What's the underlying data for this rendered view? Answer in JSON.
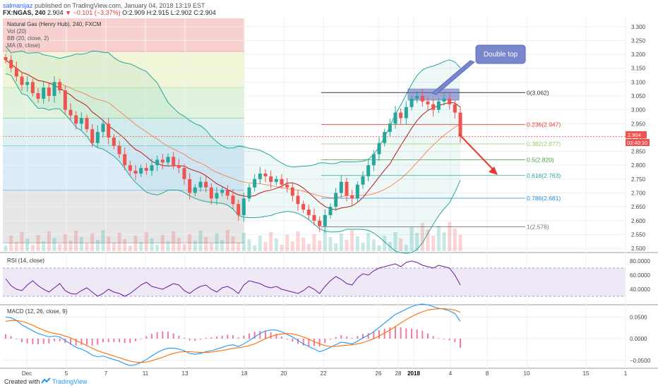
{
  "header": {
    "user": "salmanijaz",
    "published": "published on TradingView.com, January 04, 2018 13:19 EST",
    "symbol": "FX:NGAS, 240",
    "last": "2.904",
    "change": "−0.101 (−3.37%)",
    "o_label": "O:",
    "o": "2.909",
    "h_label": "H:",
    "h": "2.915",
    "l_label": "L:",
    "l": "2.902",
    "c_label": "C:",
    "c": "2.904"
  },
  "legend": {
    "title": "Natural Gas (Henry Hub), 240, FXCM",
    "vol": "Vol (20)",
    "bb": "BB (20, close, 2)",
    "ma": "MA (9, close)",
    "rsi": "RSI (14, close)",
    "macd": "MACD (12, 26, close, 9)"
  },
  "annotation": {
    "text": "Double top"
  },
  "price_tag": {
    "price": "2.904",
    "countdown": "03:40:10"
  },
  "footer": {
    "created": "Created with",
    "brand": "TradingView"
  },
  "colors": {
    "up": "#26a69a",
    "down": "#ef5350",
    "arrow": "#e53935",
    "bb": "#26a69a",
    "ma": "#b71c1c",
    "rsi": "#6a1b9a",
    "macd": "#2196f3",
    "signal": "#ff6d00",
    "annotation": "#7986cb"
  },
  "chart_data": [
    {
      "type": "candlestick",
      "title": "Natural Gas (Henry Hub), 240, FXCM",
      "ylim": [
        2.49,
        3.33
      ],
      "y_ticks": [
        "3.300",
        "3.250",
        "3.200",
        "3.150",
        "3.100",
        "3.050",
        "3.000",
        "2.950",
        "2.900",
        "2.850",
        "2.800",
        "2.750",
        "2.700",
        "2.650",
        "2.600",
        "2.550",
        "2.500"
      ],
      "x_ticks": [
        "Dec",
        "5",
        "7",
        "11",
        "13",
        "18",
        "20",
        "22",
        "26",
        "28",
        "2018",
        "4",
        "8",
        "10",
        "15",
        "1"
      ],
      "series_close": [
        3.18,
        3.15,
        3.12,
        3.09,
        3.1,
        3.06,
        3.04,
        3.08,
        3.05,
        3.1,
        3.07,
        3.0,
        2.98,
        2.95,
        2.97,
        2.93,
        2.88,
        2.92,
        2.95,
        2.9,
        2.87,
        2.84,
        2.8,
        2.78,
        2.77,
        2.79,
        2.78,
        2.8,
        2.82,
        2.81,
        2.83,
        2.8,
        2.79,
        2.75,
        2.7,
        2.72,
        2.74,
        2.72,
        2.68,
        2.7,
        2.71,
        2.69,
        2.66,
        2.62,
        2.68,
        2.72,
        2.75,
        2.77,
        2.76,
        2.74,
        2.75,
        2.73,
        2.72,
        2.69,
        2.66,
        2.64,
        2.62,
        2.6,
        2.58,
        2.62,
        2.65,
        2.7,
        2.74,
        2.69,
        2.68,
        2.73,
        2.76,
        2.8,
        2.84,
        2.88,
        2.92,
        2.95,
        2.99,
        2.97,
        3.01,
        3.04,
        3.05,
        3.03,
        3.02,
        3.0,
        3.03,
        3.04,
        3.02,
        2.99,
        2.904
      ],
      "fibonacci": [
        {
          "level": "0",
          "value": 3.062,
          "label": "0(3.062)"
        },
        {
          "level": "0.236",
          "value": 2.947,
          "label": "0.236(2.947)"
        },
        {
          "level": "0.382",
          "value": 2.877,
          "label": "0.382(2.877)"
        },
        {
          "level": "0.5",
          "value": 2.82,
          "label": "0.5(2.820)"
        },
        {
          "level": "0.618",
          "value": 2.763,
          "label": "0.618(2.763)"
        },
        {
          "level": "0.786",
          "value": 2.681,
          "label": "0.786(2.681)"
        },
        {
          "level": "1",
          "value": 2.578,
          "label": "1(2.578)"
        }
      ],
      "left_fib_zones": [
        3.33,
        3.21,
        3.08,
        2.97,
        2.87,
        2.71,
        2.52
      ]
    },
    {
      "type": "line",
      "title": "RSI (14, close)",
      "y_ticks": [
        "80.0000",
        "60.0000",
        "40.0000"
      ],
      "ylim": [
        20,
        88
      ],
      "bands": [
        70,
        30
      ],
      "values": [
        55,
        45,
        40,
        38,
        46,
        52,
        45,
        40,
        36,
        42,
        48,
        38,
        34,
        33,
        38,
        42,
        36,
        30,
        34,
        40,
        36,
        34,
        30,
        34,
        40,
        46,
        50,
        44,
        42,
        40,
        44,
        48,
        46,
        38,
        34,
        40,
        44,
        46,
        40,
        36,
        42,
        44,
        40,
        34,
        46,
        52,
        50,
        48,
        44,
        42,
        44,
        40,
        38,
        36,
        34,
        38,
        44,
        40,
        34,
        44,
        52,
        58,
        54,
        48,
        46,
        56,
        62,
        60,
        66,
        70,
        72,
        74,
        76,
        72,
        78,
        80,
        78,
        74,
        72,
        70,
        74,
        72,
        70,
        60,
        46
      ]
    },
    {
      "type": "line",
      "title": "MACD (12, 26, close, 9)",
      "y_ticks": [
        "0.0500",
        "0.0000",
        "−0.0500"
      ],
      "ylim": [
        -0.065,
        0.075
      ],
      "macd": [
        0.05,
        0.048,
        0.042,
        0.032,
        0.025,
        0.018,
        0.012,
        0.008,
        0.004,
        0.006,
        0.004,
        -0.004,
        -0.012,
        -0.02,
        -0.024,
        -0.03,
        -0.038,
        -0.042,
        -0.04,
        -0.044,
        -0.048,
        -0.052,
        -0.058,
        -0.062,
        -0.06,
        -0.055,
        -0.048,
        -0.04,
        -0.032,
        -0.026,
        -0.022,
        -0.022,
        -0.024,
        -0.028,
        -0.034,
        -0.036,
        -0.034,
        -0.03,
        -0.028,
        -0.024,
        -0.02,
        -0.016,
        -0.014,
        -0.018,
        -0.012,
        -0.004,
        0.004,
        0.012,
        0.018,
        0.02,
        0.02,
        0.016,
        0.01,
        0.004,
        -0.004,
        -0.012,
        -0.018,
        -0.024,
        -0.03,
        -0.026,
        -0.02,
        -0.014,
        -0.008,
        -0.01,
        -0.012,
        -0.006,
        0.002,
        0.008,
        0.016,
        0.026,
        0.036,
        0.046,
        0.056,
        0.062,
        0.068,
        0.074,
        0.078,
        0.08,
        0.078,
        0.074,
        0.07,
        0.068,
        0.064,
        0.058,
        0.04
      ],
      "signal": [
        0.04,
        0.042,
        0.042,
        0.04,
        0.036,
        0.031,
        0.025,
        0.02,
        0.015,
        0.012,
        0.01,
        0.006,
        0.002,
        -0.004,
        -0.01,
        -0.016,
        -0.022,
        -0.028,
        -0.032,
        -0.036,
        -0.04,
        -0.044,
        -0.048,
        -0.052,
        -0.054,
        -0.055,
        -0.054,
        -0.051,
        -0.047,
        -0.043,
        -0.038,
        -0.034,
        -0.031,
        -0.03,
        -0.03,
        -0.031,
        -0.032,
        -0.032,
        -0.031,
        -0.029,
        -0.027,
        -0.025,
        -0.022,
        -0.021,
        -0.019,
        -0.016,
        -0.012,
        -0.006,
        0.0,
        0.005,
        0.009,
        0.011,
        0.012,
        0.011,
        0.008,
        0.004,
        -0.001,
        -0.007,
        -0.012,
        -0.016,
        -0.018,
        -0.018,
        -0.016,
        -0.015,
        -0.014,
        -0.012,
        -0.009,
        -0.005,
        0.0,
        0.006,
        0.013,
        0.02,
        0.028,
        0.036,
        0.044,
        0.051,
        0.057,
        0.062,
        0.066,
        0.068,
        0.069,
        0.069,
        0.068,
        0.066,
        0.061
      ]
    }
  ]
}
